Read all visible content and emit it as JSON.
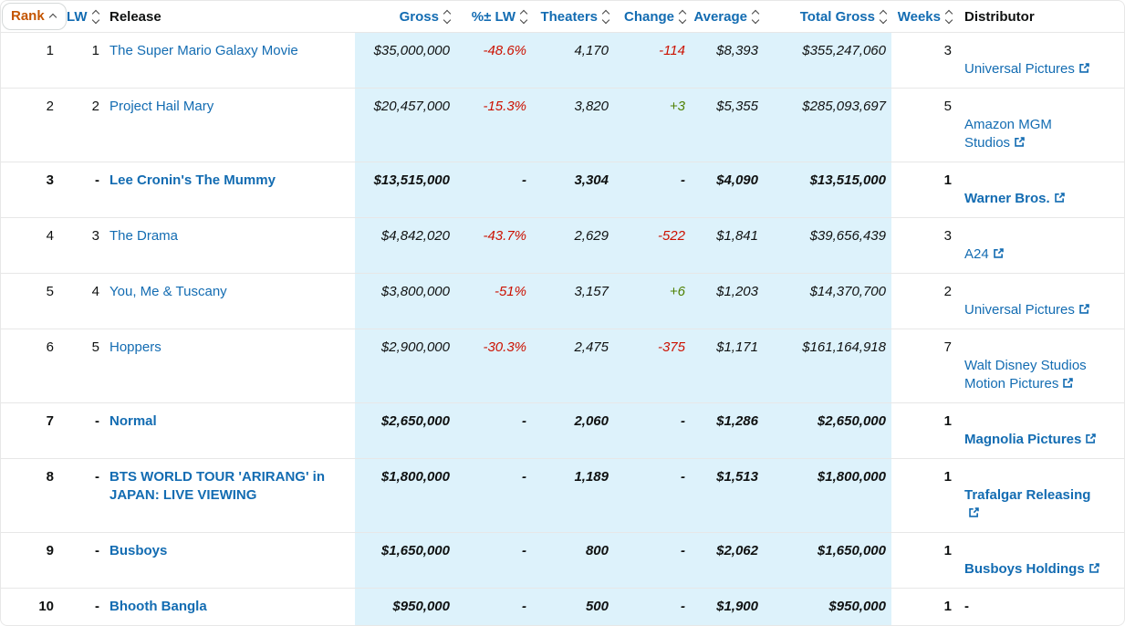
{
  "colors": {
    "accent_orange": "#c45500",
    "link_blue": "#136cb2",
    "negative_red": "#cc1100",
    "positive_green": "#508104",
    "highlight_cyan": "#ddf2fb",
    "row_divider": "#e7e7e7"
  },
  "icons": {
    "sort_both": "up-down-chevrons",
    "sort_active": "up-chevron",
    "external_link": "box-arrow-up-right"
  },
  "table": {
    "columns": [
      {
        "key": "rank",
        "label": "Rank",
        "sort": "asc",
        "sorted": true
      },
      {
        "key": "lw",
        "label": "LW",
        "sort": "both",
        "sorted": false
      },
      {
        "key": "release",
        "label": "Release",
        "sort": "none",
        "sorted": false
      },
      {
        "key": "gross",
        "label": "Gross",
        "sort": "both",
        "sorted": false
      },
      {
        "key": "pct_lw",
        "label": "%± LW",
        "sort": "both",
        "sorted": false
      },
      {
        "key": "theaters",
        "label": "Theaters",
        "sort": "both",
        "sorted": false
      },
      {
        "key": "change",
        "label": "Change",
        "sort": "both",
        "sorted": false
      },
      {
        "key": "average",
        "label": "Average",
        "sort": "both",
        "sorted": false
      },
      {
        "key": "total_gross",
        "label": "Total Gross",
        "sort": "both",
        "sorted": false
      },
      {
        "key": "weeks",
        "label": "Weeks",
        "sort": "both",
        "sorted": false
      },
      {
        "key": "distributor",
        "label": "Distributor",
        "sort": "none",
        "sorted": false
      }
    ],
    "rows": [
      {
        "rank": "1",
        "lw": "1",
        "release": "The Super Mario Galaxy Movie",
        "gross": "$35,000,000",
        "pct_lw": "-48.6%",
        "theaters": "4,170",
        "change": "-114",
        "average": "$8,393",
        "total_gross": "$355,247,060",
        "weeks": "3",
        "distributor": "Universal Pictures",
        "distributor_link": true,
        "new_release": false
      },
      {
        "rank": "2",
        "lw": "2",
        "release": "Project Hail Mary",
        "gross": "$20,457,000",
        "pct_lw": "-15.3%",
        "theaters": "3,820",
        "change": "+3",
        "average": "$5,355",
        "total_gross": "$285,093,697",
        "weeks": "5",
        "distributor": "Amazon MGM\nStudios",
        "distributor_link": true,
        "new_release": false
      },
      {
        "rank": "3",
        "lw": "-",
        "release": "Lee Cronin's The Mummy",
        "gross": "$13,515,000",
        "pct_lw": "-",
        "theaters": "3,304",
        "change": "-",
        "average": "$4,090",
        "total_gross": "$13,515,000",
        "weeks": "1",
        "distributor": "Warner Bros.",
        "distributor_link": true,
        "new_release": true
      },
      {
        "rank": "4",
        "lw": "3",
        "release": "The Drama",
        "gross": "$4,842,020",
        "pct_lw": "-43.7%",
        "theaters": "2,629",
        "change": "-522",
        "average": "$1,841",
        "total_gross": "$39,656,439",
        "weeks": "3",
        "distributor": "A24",
        "distributor_link": true,
        "new_release": false
      },
      {
        "rank": "5",
        "lw": "4",
        "release": "You, Me & Tuscany",
        "gross": "$3,800,000",
        "pct_lw": "-51%",
        "theaters": "3,157",
        "change": "+6",
        "average": "$1,203",
        "total_gross": "$14,370,700",
        "weeks": "2",
        "distributor": "Universal Pictures",
        "distributor_link": true,
        "new_release": false
      },
      {
        "rank": "6",
        "lw": "5",
        "release": "Hoppers",
        "gross": "$2,900,000",
        "pct_lw": "-30.3%",
        "theaters": "2,475",
        "change": "-375",
        "average": "$1,171",
        "total_gross": "$161,164,918",
        "weeks": "7",
        "distributor": "Walt Disney Studios\nMotion Pictures",
        "distributor_link": true,
        "new_release": false
      },
      {
        "rank": "7",
        "lw": "-",
        "release": "Normal",
        "gross": "$2,650,000",
        "pct_lw": "-",
        "theaters": "2,060",
        "change": "-",
        "average": "$1,286",
        "total_gross": "$2,650,000",
        "weeks": "1",
        "distributor": "Magnolia Pictures",
        "distributor_link": true,
        "new_release": true
      },
      {
        "rank": "8",
        "lw": "-",
        "release": "BTS WORLD TOUR 'ARIRANG' in\nJAPAN: LIVE VIEWING",
        "gross": "$1,800,000",
        "pct_lw": "-",
        "theaters": "1,189",
        "change": "-",
        "average": "$1,513",
        "total_gross": "$1,800,000",
        "weeks": "1",
        "distributor": "Trafalgar Releasing\n",
        "distributor_link": true,
        "new_release": true
      },
      {
        "rank": "9",
        "lw": "-",
        "release": "Busboys",
        "gross": "$1,650,000",
        "pct_lw": "-",
        "theaters": "800",
        "change": "-",
        "average": "$2,062",
        "total_gross": "$1,650,000",
        "weeks": "1",
        "distributor": "Busboys Holdings",
        "distributor_link": true,
        "new_release": true
      },
      {
        "rank": "10",
        "lw": "-",
        "release": "Bhooth Bangla",
        "gross": "$950,000",
        "pct_lw": "-",
        "theaters": "500",
        "change": "-",
        "average": "$1,900",
        "total_gross": "$950,000",
        "weeks": "1",
        "distributor": "-",
        "distributor_link": false,
        "new_release": true
      }
    ]
  }
}
